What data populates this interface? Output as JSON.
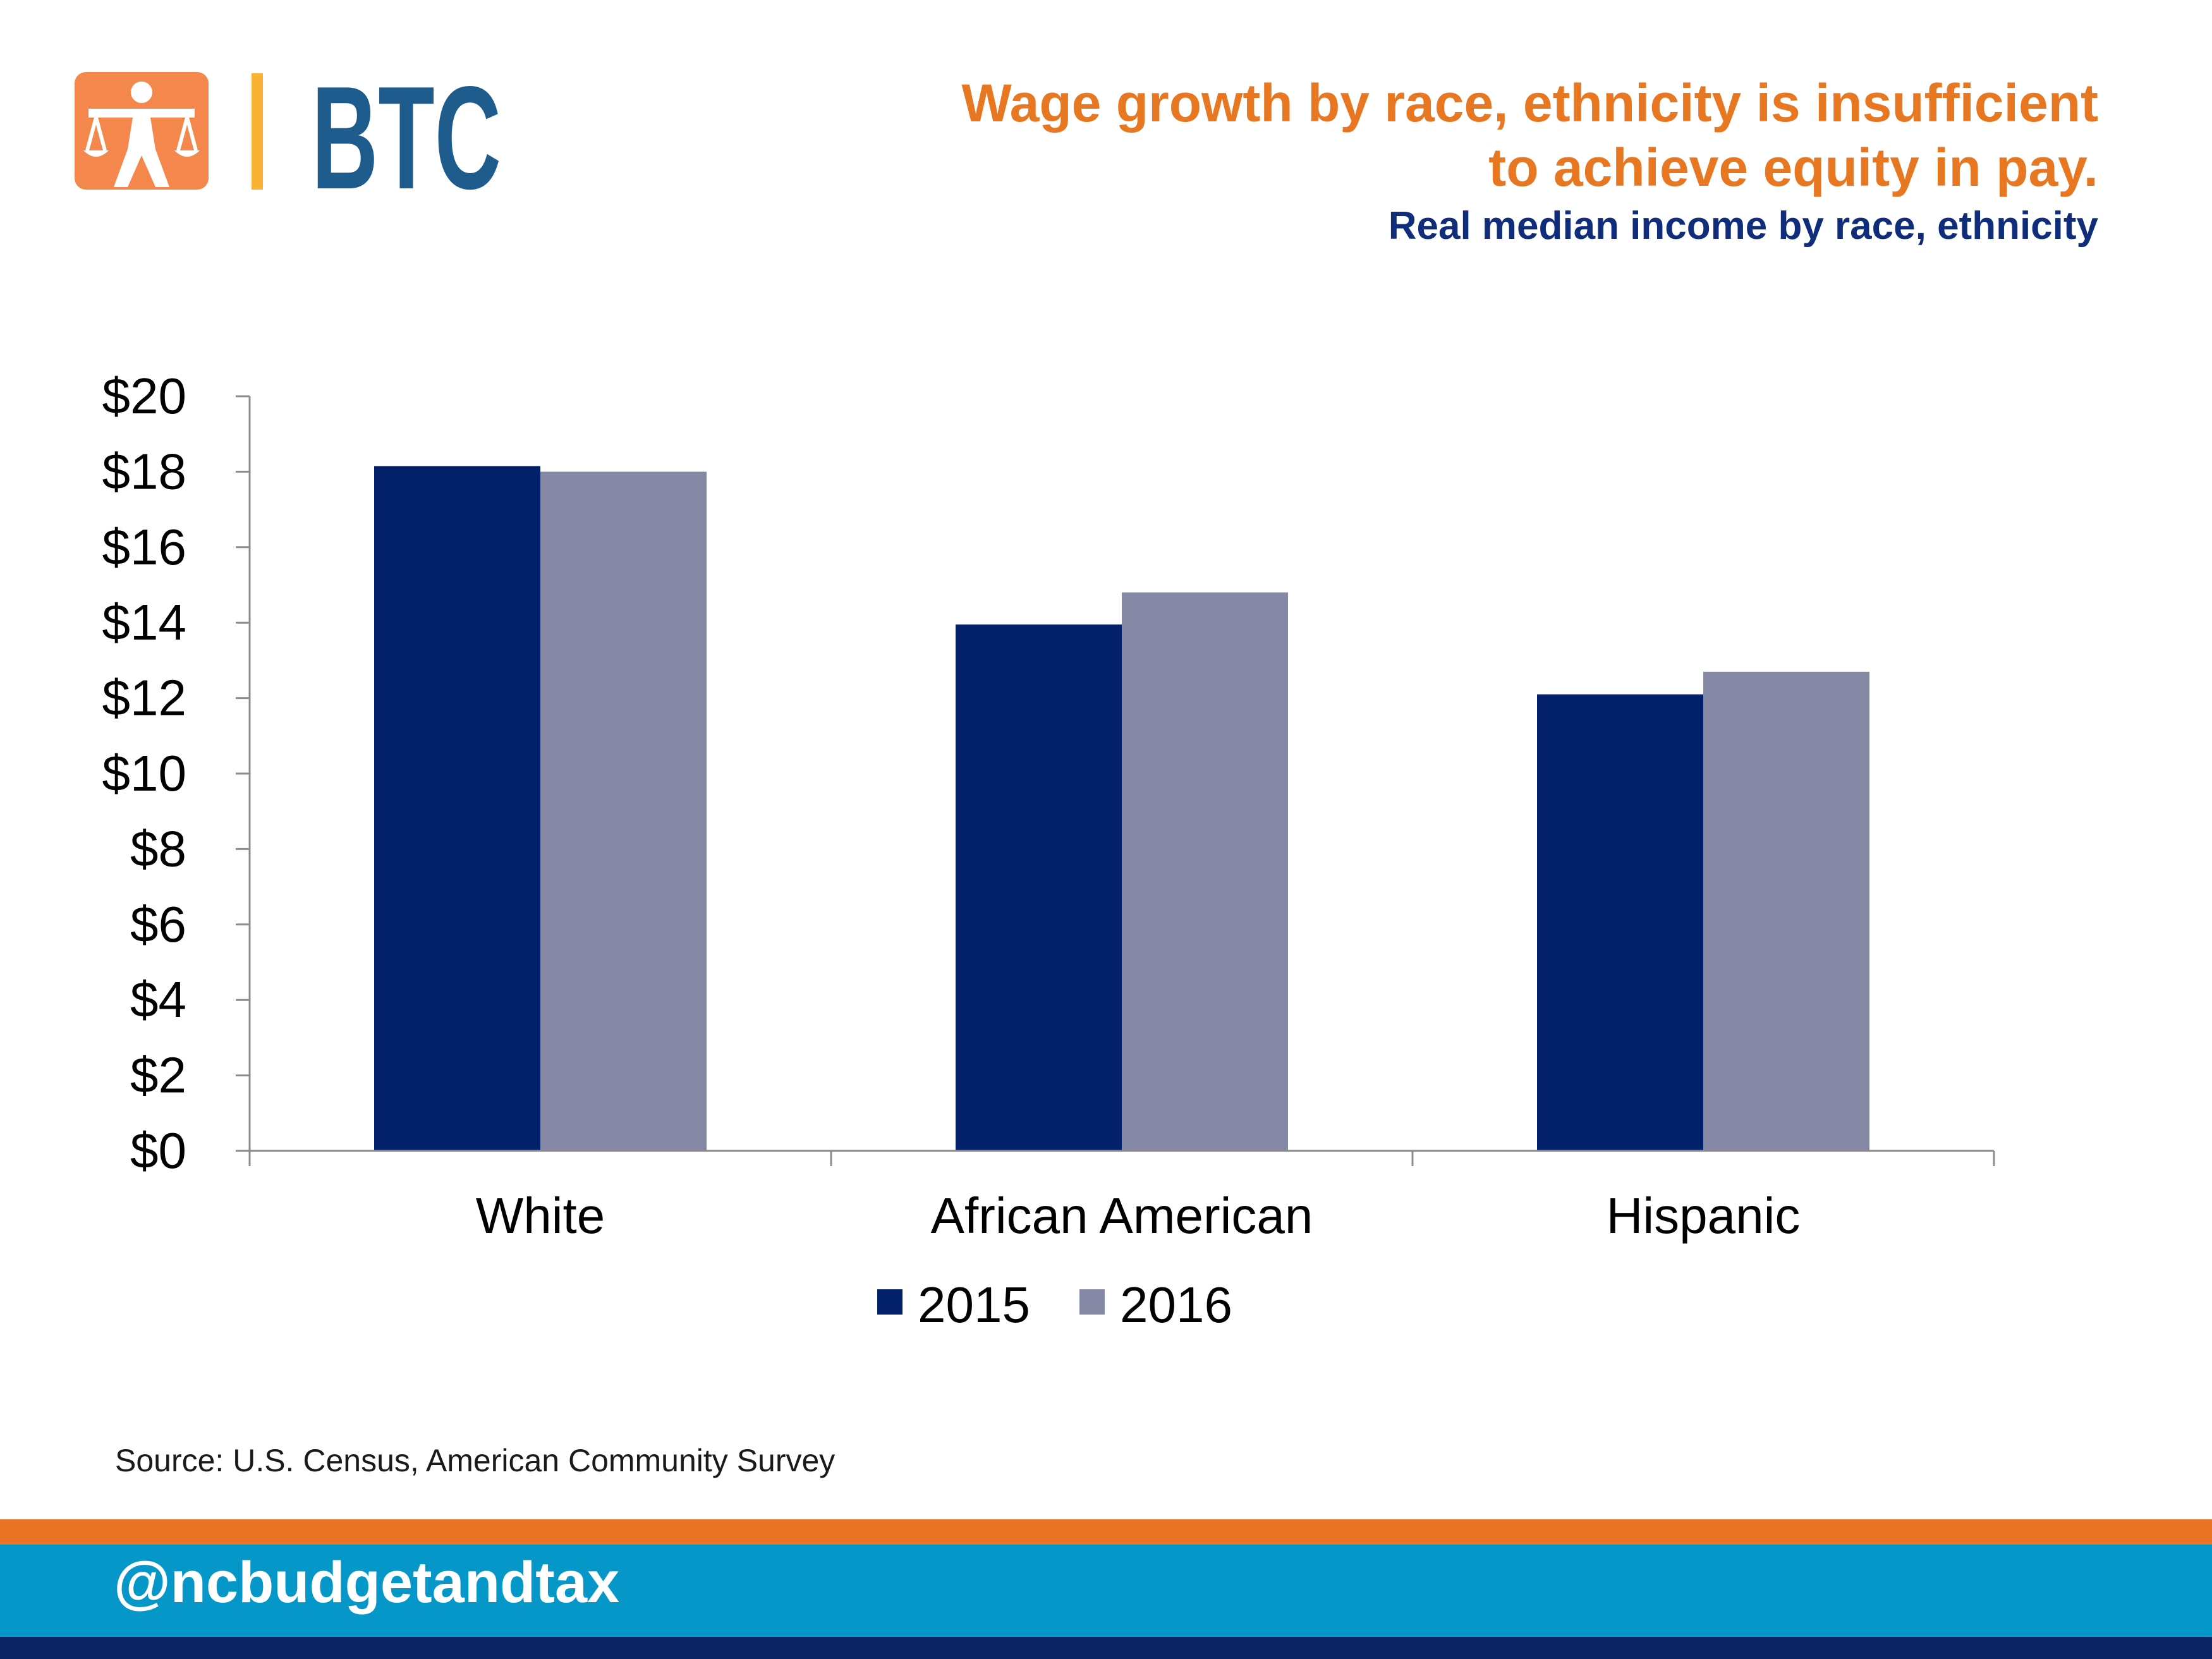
{
  "brand": {
    "logo_text": "BTC",
    "colors": {
      "orange": "#F4874B",
      "yellow": "#F9B233",
      "blue": "#1E5C8E"
    }
  },
  "header": {
    "title_line1": "Wage growth by race, ethnicity is insufficient",
    "title_line2": "to achieve equity in pay.",
    "subtitle": "Real median income by race, ethnicity"
  },
  "chart_data": {
    "type": "bar",
    "categories": [
      "White",
      "African American",
      "Hispanic"
    ],
    "series": [
      {
        "name": "2015",
        "values": [
          18.15,
          13.95,
          12.1
        ],
        "color": "#03216A"
      },
      {
        "name": "2016",
        "values": [
          18.0,
          14.8,
          12.7
        ],
        "color": "#8689A5"
      }
    ],
    "ylim": [
      0,
      20
    ],
    "yticks": [
      0,
      2,
      4,
      6,
      8,
      10,
      12,
      14,
      16,
      18,
      20
    ],
    "ytick_labels": [
      "$0",
      "$2",
      "$4",
      "$6",
      "$8",
      "$10",
      "$12",
      "$14",
      "$16",
      "$18",
      "$20"
    ],
    "grid": false,
    "legend_position": "bottom"
  },
  "footer": {
    "source": "Source: U.S. Census, American Community Survey",
    "handle": "@ncbudgetandtax"
  }
}
